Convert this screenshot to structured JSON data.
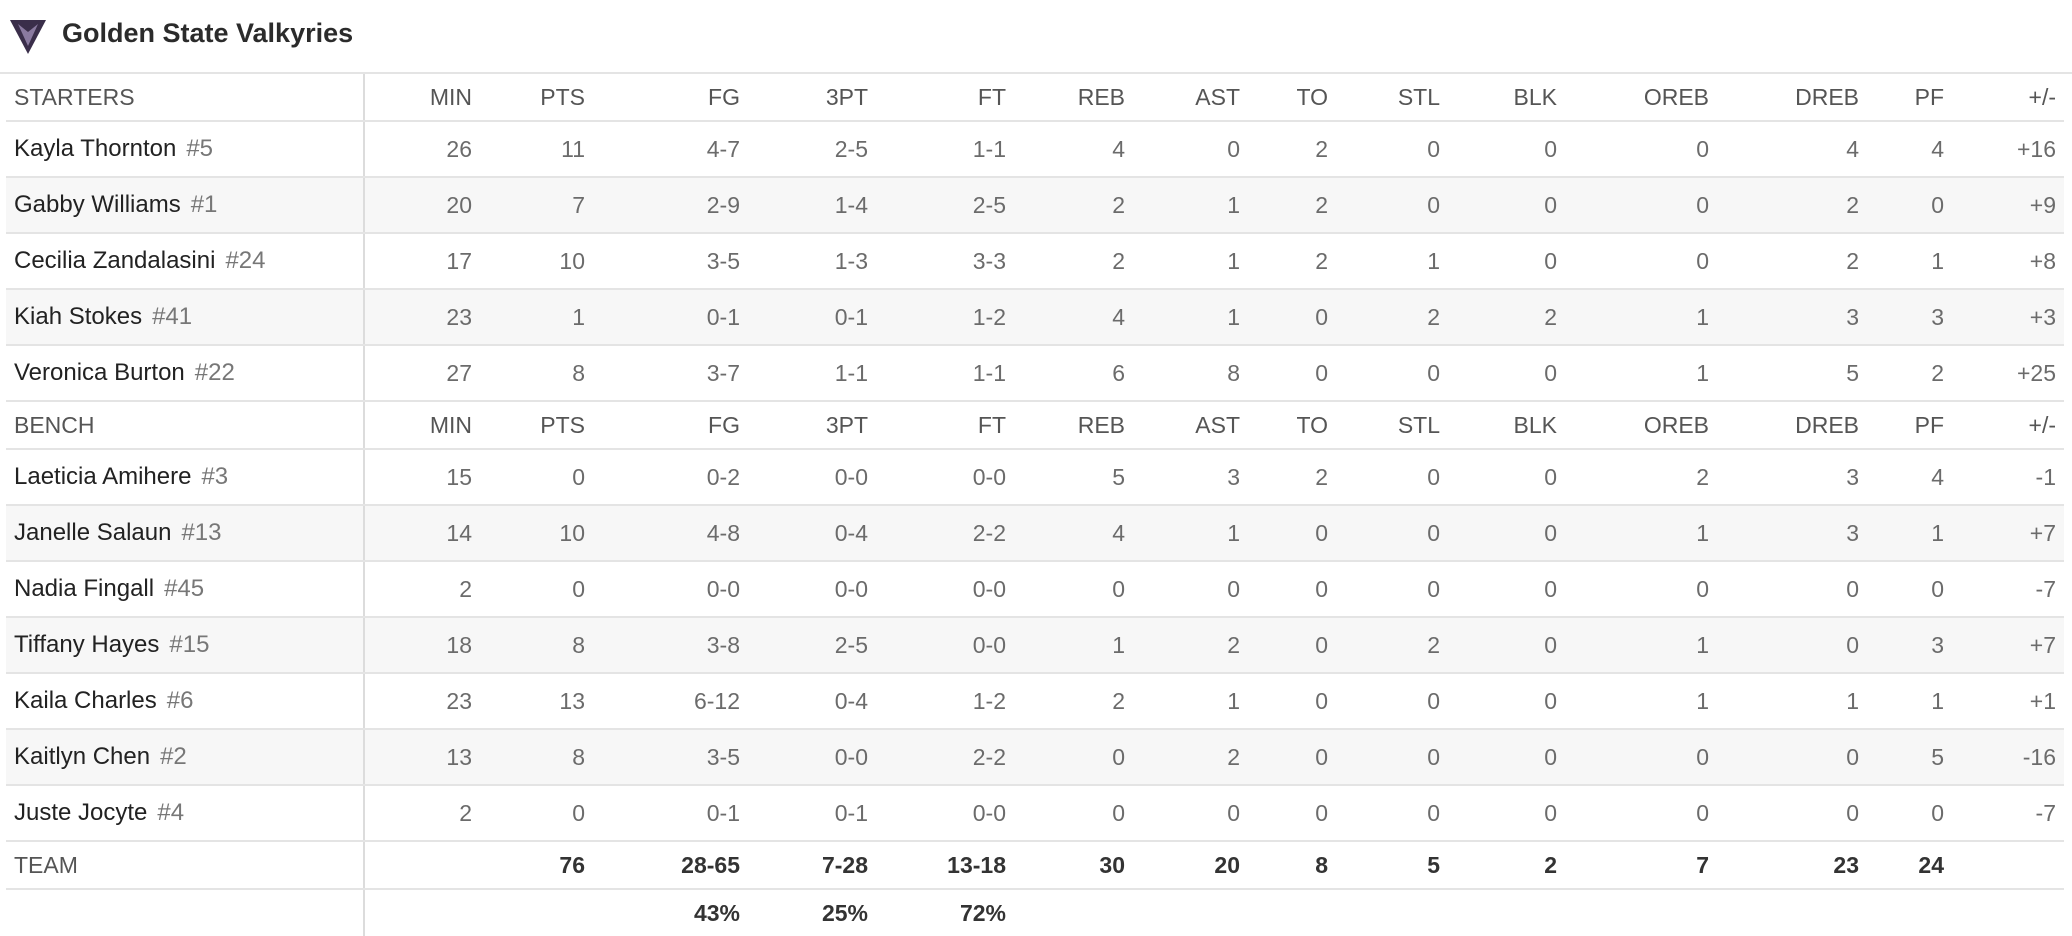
{
  "header": {
    "title": "Golden State Valkyries"
  },
  "table": {
    "columns": [
      "MIN",
      "PTS",
      "FG",
      "3PT",
      "FT",
      "REB",
      "AST",
      "TO",
      "STL",
      "BLK",
      "OREB",
      "DREB",
      "PF",
      "+/-"
    ],
    "starters": {
      "label": "STARTERS",
      "players": [
        {
          "name": "Kayla Thornton",
          "number": "#5",
          "stats": [
            "26",
            "11",
            "4-7",
            "2-5",
            "1-1",
            "4",
            "0",
            "2",
            "0",
            "0",
            "0",
            "4",
            "4",
            "+16"
          ]
        },
        {
          "name": "Gabby Williams",
          "number": "#1",
          "stats": [
            "20",
            "7",
            "2-9",
            "1-4",
            "2-5",
            "2",
            "1",
            "2",
            "0",
            "0",
            "0",
            "2",
            "0",
            "+9"
          ]
        },
        {
          "name": "Cecilia Zandalasini",
          "number": "#24",
          "stats": [
            "17",
            "10",
            "3-5",
            "1-3",
            "3-3",
            "2",
            "1",
            "2",
            "1",
            "0",
            "0",
            "2",
            "1",
            "+8"
          ]
        },
        {
          "name": "Kiah Stokes",
          "number": "#41",
          "stats": [
            "23",
            "1",
            "0-1",
            "0-1",
            "1-2",
            "4",
            "1",
            "0",
            "2",
            "2",
            "1",
            "3",
            "3",
            "+3"
          ]
        },
        {
          "name": "Veronica Burton",
          "number": "#22",
          "stats": [
            "27",
            "8",
            "3-7",
            "1-1",
            "1-1",
            "6",
            "8",
            "0",
            "0",
            "0",
            "1",
            "5",
            "2",
            "+25"
          ]
        }
      ]
    },
    "bench": {
      "label": "BENCH",
      "players": [
        {
          "name": "Laeticia Amihere",
          "number": "#3",
          "stats": [
            "15",
            "0",
            "0-2",
            "0-0",
            "0-0",
            "5",
            "3",
            "2",
            "0",
            "0",
            "2",
            "3",
            "4",
            "-1"
          ]
        },
        {
          "name": "Janelle Salaun",
          "number": "#13",
          "stats": [
            "14",
            "10",
            "4-8",
            "0-4",
            "2-2",
            "4",
            "1",
            "0",
            "0",
            "0",
            "1",
            "3",
            "1",
            "+7"
          ]
        },
        {
          "name": "Nadia Fingall",
          "number": "#45",
          "stats": [
            "2",
            "0",
            "0-0",
            "0-0",
            "0-0",
            "0",
            "0",
            "0",
            "0",
            "0",
            "0",
            "0",
            "0",
            "-7"
          ]
        },
        {
          "name": "Tiffany Hayes",
          "number": "#15",
          "stats": [
            "18",
            "8",
            "3-8",
            "2-5",
            "0-0",
            "1",
            "2",
            "0",
            "2",
            "0",
            "1",
            "0",
            "3",
            "+7"
          ]
        },
        {
          "name": "Kaila Charles",
          "number": "#6",
          "stats": [
            "23",
            "13",
            "6-12",
            "0-4",
            "1-2",
            "2",
            "1",
            "0",
            "0",
            "0",
            "1",
            "1",
            "1",
            "+1"
          ]
        },
        {
          "name": "Kaitlyn Chen",
          "number": "#2",
          "stats": [
            "13",
            "8",
            "3-5",
            "0-0",
            "2-2",
            "0",
            "2",
            "0",
            "0",
            "0",
            "0",
            "0",
            "5",
            "-16"
          ]
        },
        {
          "name": "Juste Jocyte",
          "number": "#4",
          "stats": [
            "2",
            "0",
            "0-1",
            "0-1",
            "0-0",
            "0",
            "0",
            "0",
            "0",
            "0",
            "0",
            "0",
            "0",
            "-7"
          ]
        }
      ]
    },
    "team": {
      "label": "TEAM",
      "stats": [
        "76",
        "28-65",
        "7-28",
        "13-18",
        "30",
        "20",
        "8",
        "5",
        "2",
        "7",
        "23",
        "24"
      ],
      "percentages": [
        "43%",
        "25%",
        "72%"
      ]
    }
  }
}
